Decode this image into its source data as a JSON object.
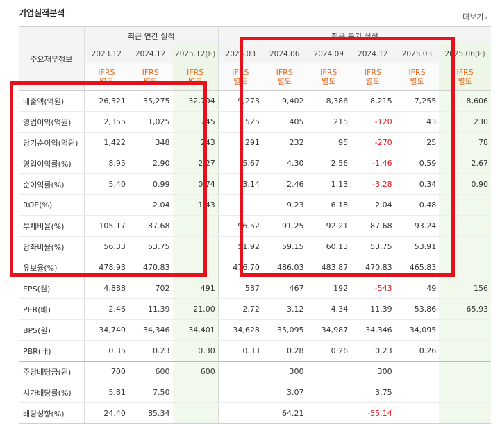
{
  "header": {
    "title": "기업실적분석",
    "more_label": "더보기"
  },
  "table": {
    "row_header_label": "주요재무정보",
    "group_annual": "최근 연간 실적",
    "group_quarter": "최근 분기 실적",
    "periods": [
      {
        "label": "2023.12",
        "ifrs": "IFRS",
        "sub": "별도",
        "estimate": false
      },
      {
        "label": "2024.12",
        "ifrs": "IFRS",
        "sub": "별도",
        "estimate": false
      },
      {
        "label": "2025.12",
        "est_tag": "(E)",
        "ifrs": "IFRS",
        "sub": "별도",
        "estimate": true
      },
      {
        "label": "2024.03",
        "ifrs": "IFRS",
        "sub": "별도",
        "estimate": false
      },
      {
        "label": "2024.06",
        "ifrs": "IFRS",
        "sub": "별도",
        "estimate": false
      },
      {
        "label": "2024.09",
        "ifrs": "IFRS",
        "sub": "별도",
        "estimate": false
      },
      {
        "label": "2024.12",
        "ifrs": "IFRS",
        "sub": "별도",
        "estimate": false
      },
      {
        "label": "2025.03",
        "ifrs": "IFRS",
        "sub": "별도",
        "estimate": false
      },
      {
        "label": "2025.06",
        "est_tag": "(E)",
        "ifrs": "IFRS",
        "sub": "별도",
        "estimate": true
      }
    ],
    "rows": [
      {
        "label": "매출액(억원)",
        "values": [
          "26,321",
          "35,275",
          "32,794",
          "9,273",
          "9,402",
          "8,386",
          "8,215",
          "7,255",
          "8,606"
        ]
      },
      {
        "label": "영업이익(억원)",
        "values": [
          "2,355",
          "1,025",
          "745",
          "525",
          "405",
          "215",
          "-120",
          "43",
          "230"
        ]
      },
      {
        "label": "당기순이익(억원)",
        "values": [
          "1,422",
          "348",
          "243",
          "291",
          "232",
          "95",
          "-270",
          "25",
          "78"
        ]
      },
      {
        "label": "영업이익률(%)",
        "values": [
          "8.95",
          "2.90",
          "2.27",
          "5.67",
          "4.30",
          "2.56",
          "-1.46",
          "0.59",
          "2.67"
        ]
      },
      {
        "label": "순이익률(%)",
        "values": [
          "5.40",
          "0.99",
          "0.74",
          "3.14",
          "2.46",
          "1.13",
          "-3.28",
          "0.34",
          "0.90"
        ]
      },
      {
        "label": "ROE(%)",
        "values": [
          "",
          "2.04",
          "1.43",
          "",
          "9.23",
          "6.18",
          "2.04",
          "0.48",
          ""
        ]
      },
      {
        "label": "부채비율(%)",
        "values": [
          "105.17",
          "87.68",
          "",
          "96.52",
          "91.25",
          "92.21",
          "87.68",
          "93.24",
          ""
        ]
      },
      {
        "label": "당좌비율(%)",
        "values": [
          "56.33",
          "53.75",
          "",
          "51.92",
          "59.15",
          "60.13",
          "53.75",
          "53.91",
          ""
        ]
      },
      {
        "label": "유보율(%)",
        "values": [
          "478.93",
          "470.83",
          "",
          "476.70",
          "486.03",
          "483.87",
          "470.83",
          "465.83",
          ""
        ]
      },
      {
        "label": "EPS(원)",
        "values": [
          "4,888",
          "702",
          "491",
          "587",
          "467",
          "192",
          "-543",
          "49",
          "156"
        ]
      },
      {
        "label": "PER(배)",
        "values": [
          "2.46",
          "11.39",
          "21.00",
          "2.72",
          "3.12",
          "4.34",
          "11.39",
          "53.86",
          "65.93"
        ]
      },
      {
        "label": "BPS(원)",
        "values": [
          "34,740",
          "34,346",
          "34,401",
          "34,628",
          "35,095",
          "34,987",
          "34,346",
          "34,095",
          ""
        ]
      },
      {
        "label": "PBR(배)",
        "values": [
          "0.35",
          "0.23",
          "0.30",
          "0.33",
          "0.28",
          "0.26",
          "0.23",
          "0.26",
          ""
        ]
      },
      {
        "label": "주당배당금(원)",
        "values": [
          "700",
          "600",
          "600",
          "",
          "300",
          "",
          "300",
          "",
          ""
        ]
      },
      {
        "label": "시가배당률(%)",
        "values": [
          "5.81",
          "7.50",
          "",
          "",
          "3.07",
          "",
          "3.75",
          "",
          ""
        ]
      },
      {
        "label": "배당성향(%)",
        "values": [
          "24.40",
          "85.34",
          "",
          "",
          "64.21",
          "",
          "-55.14",
          "",
          ""
        ]
      }
    ]
  },
  "colors": {
    "highlight_box": "#e4121c",
    "ifrs_text": "#e86b1c",
    "negative_value": "#e4121c",
    "estimate_bg": "#f1f8ec"
  }
}
